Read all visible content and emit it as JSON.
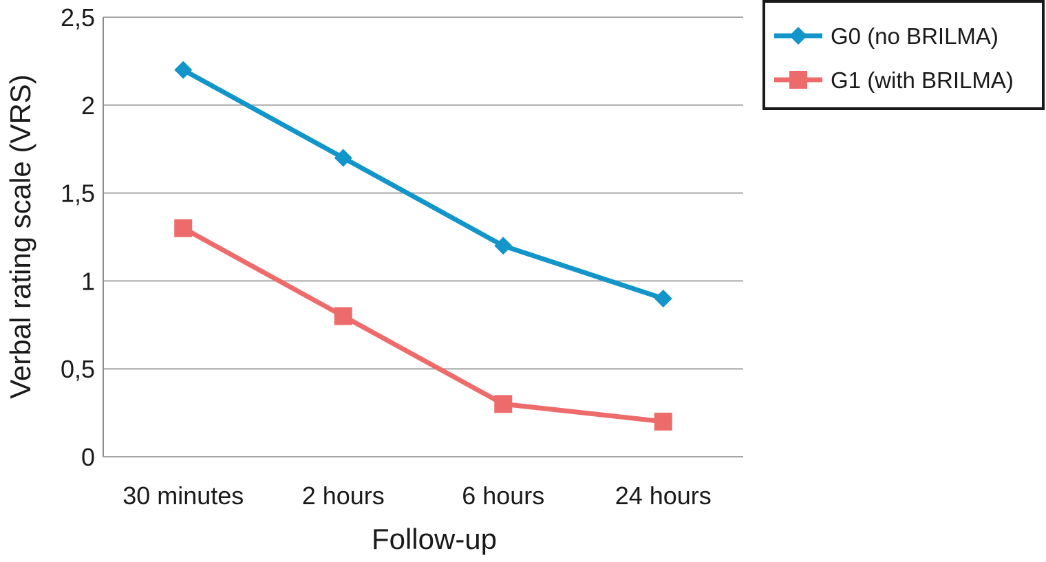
{
  "chart_data": {
    "type": "line",
    "categories": [
      "30 minutes",
      "2 hours",
      "6 hours",
      "24 hours"
    ],
    "series": [
      {
        "name": "G0 (no BRILMA)",
        "values": [
          2.2,
          1.7,
          1.2,
          0.9
        ],
        "color": "#1295c9",
        "marker": "diamond"
      },
      {
        "name": "G1 (with BRILMA)",
        "values": [
          1.3,
          0.8,
          0.3,
          0.2
        ],
        "color": "#ee6b6b",
        "marker": "square"
      }
    ],
    "title": "",
    "xlabel": "Follow-up",
    "ylabel": "Verbal rating scale (VRS)",
    "ylim": [
      0,
      2.5
    ],
    "yticks": [
      {
        "value": 0,
        "label": "0"
      },
      {
        "value": 0.5,
        "label": "0,5"
      },
      {
        "value": 1,
        "label": "1"
      },
      {
        "value": 1.5,
        "label": "1,5"
      },
      {
        "value": 2,
        "label": "2"
      },
      {
        "value": 2.5,
        "label": "2,5"
      }
    ],
    "grid": true,
    "legend_position": "top-right",
    "colors": {
      "gridline": "#a6a6a6",
      "axis": "#8c8c8c",
      "legend_border": "#1a1a1a"
    }
  }
}
